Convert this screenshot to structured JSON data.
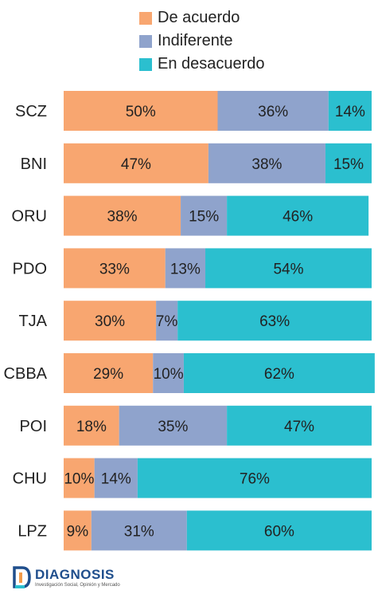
{
  "chart_data": {
    "type": "bar",
    "orientation": "horizontal",
    "stacked": true,
    "categories": [
      "SCZ",
      "BNI",
      "ORU",
      "PDO",
      "TJA",
      "CBBA",
      "POI",
      "CHU",
      "LPZ"
    ],
    "series": [
      {
        "name": "De acuerdo",
        "color": "#f8a670",
        "values": [
          50,
          47,
          38,
          33,
          30,
          29,
          18,
          10,
          9
        ]
      },
      {
        "name": "Indiferente",
        "color": "#8fa3cc",
        "values": [
          36,
          38,
          15,
          13,
          7,
          10,
          35,
          14,
          31
        ]
      },
      {
        "name": "En desacuerdo",
        "color": "#2bbfcf",
        "values": [
          14,
          15,
          46,
          54,
          63,
          62,
          47,
          76,
          60
        ]
      }
    ],
    "value_suffix": "%",
    "legend_position": "top",
    "xlim": [
      0,
      100
    ],
    "grid": false
  },
  "logo": {
    "brand": "DIAGNOSIS",
    "tagline": "Investigación Social, Opinión y Mercado"
  }
}
